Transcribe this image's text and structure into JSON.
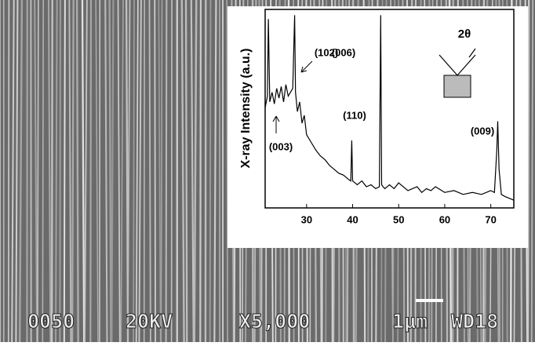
{
  "chart_data": {
    "type": "line",
    "ylabel": "X-ray Intensity (a.u.)",
    "x": [
      21,
      21.5,
      21.7,
      22,
      22.5,
      23,
      23.5,
      24,
      24.5,
      25,
      25.5,
      26,
      26.5,
      27,
      27.4,
      27.6,
      28,
      28.5,
      29,
      29.5,
      30,
      31,
      32,
      33,
      34,
      35,
      36,
      37,
      38,
      39,
      39.6,
      39.8,
      40,
      40.5,
      41,
      42,
      43,
      44,
      45,
      45.8,
      46.1,
      46.3,
      46.6,
      47,
      48,
      49,
      50,
      52,
      54,
      55,
      56,
      57,
      58,
      60,
      62,
      64,
      66,
      68,
      70,
      70.8,
      71.3,
      71.5,
      71.8,
      72.3,
      73,
      74,
      75
    ],
    "series": [
      {
        "color": "#000000",
        "values": [
          52,
          58,
          98,
          55,
          60,
          54,
          62,
          57,
          63,
          55,
          64,
          58,
          60,
          62,
          100,
          60,
          50,
          55,
          44,
          48,
          38,
          34,
          30,
          27,
          25,
          22,
          20,
          18,
          17,
          15,
          14,
          35,
          14,
          13,
          12,
          14,
          11,
          12,
          10,
          11,
          100,
          12,
          11,
          10,
          12,
          10,
          13,
          9,
          11,
          8,
          10,
          9,
          11,
          8,
          9,
          7,
          8,
          7,
          9,
          8,
          30,
          45,
          20,
          7,
          6,
          5,
          4
        ]
      }
    ],
    "xlim": [
      21,
      75
    ],
    "xticks": [
      30,
      40,
      50,
      60,
      70
    ],
    "ylim": [
      0,
      103
    ],
    "annotations": [
      "(102)",
      "(006)",
      "(110)",
      "(003)",
      "(009)",
      "2θ"
    ]
  },
  "micrograph": {
    "labels": [
      "0050",
      "20KV",
      "X5,000",
      "1μm",
      "WD18"
    ]
  }
}
